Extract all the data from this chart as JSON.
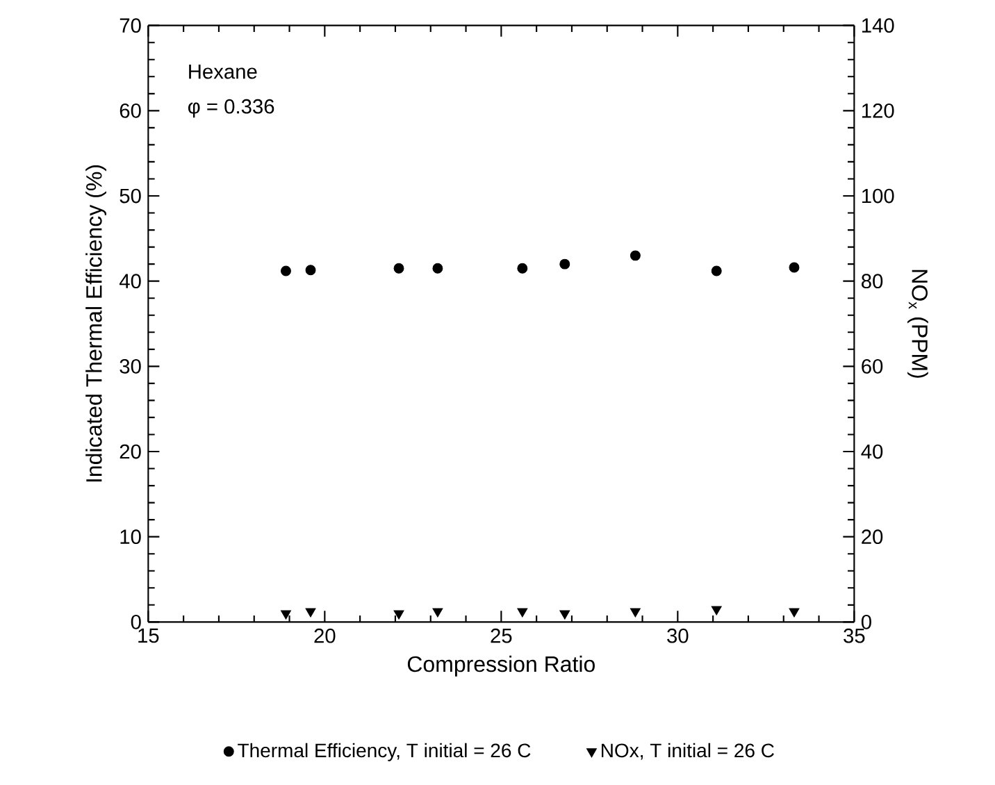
{
  "chart_data": {
    "type": "scatter",
    "xlabel": "Compression Ratio",
    "ylabel": "Indicated Thermal Efficiency  (%)",
    "y2label": "NO$_{x}$  (PPM)",
    "annotations": [
      "Hexane",
      "φ = 0.336"
    ],
    "x": [
      18.9,
      19.6,
      22.1,
      23.2,
      25.6,
      26.8,
      28.8,
      31.1,
      33.3
    ],
    "series": [
      {
        "name": "Thermal Efficiency,  T initial = 26 C",
        "color": "#000000",
        "marker": "circle",
        "values": [
          41.2,
          41.3,
          41.5,
          41.5,
          41.5,
          42.0,
          43.0,
          41.2,
          41.6
        ]
      },
      {
        "name": "NOx,  T initial = 26 C",
        "color": "#000000",
        "marker": "triangle",
        "axis": "y2",
        "values": [
          2.0,
          2.5,
          2.0,
          2.5,
          2.5,
          2.0,
          2.5,
          3.0,
          2.5
        ]
      }
    ],
    "xlim": [
      15,
      35
    ],
    "xticks": [
      15,
      20,
      25,
      30,
      35
    ],
    "ylim": [
      0,
      70
    ],
    "yticks": [
      0,
      10,
      20,
      30,
      40,
      50,
      60,
      70
    ],
    "y2lim": [
      0,
      140
    ],
    "y2ticks": [
      0,
      20,
      40,
      60,
      80,
      100,
      120,
      140
    ],
    "grid": false,
    "legend": "bottom"
  }
}
